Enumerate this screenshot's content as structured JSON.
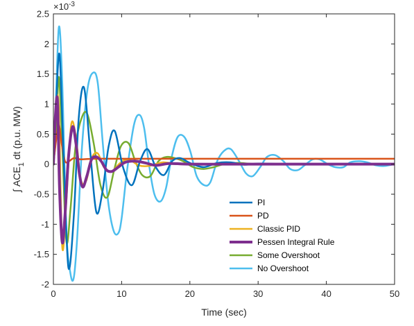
{
  "chart_data": {
    "type": "line",
    "xlabel": "Time (sec)",
    "ylabel": {
      "integral": "∫",
      "pre": "ACE",
      "sub": "1",
      "post": "dt (p.u. MW)"
    },
    "y_exponent": "×10",
    "y_exponent_power": "-3",
    "xlim": [
      0,
      50
    ],
    "ylim": [
      -2,
      2.5
    ],
    "xticks": [
      0,
      10,
      20,
      30,
      40,
      50
    ],
    "yticks": [
      -2,
      -1.5,
      -1,
      -0.5,
      0,
      0.5,
      1,
      1.5,
      2,
      2.5
    ],
    "grid": false,
    "legend_position": "bottom-center",
    "series": [
      {
        "name": "PI",
        "color": "#0072BD",
        "width": 2.5,
        "x": [
          0,
          0.4,
          0.9,
          1.5,
          2.2,
          3.0,
          3.7,
          4.5,
          5.4,
          6.3,
          7.2,
          8.1,
          9.0,
          10.2,
          11.5,
          12.7,
          13.8,
          15.0,
          16.2,
          17.4,
          18.6,
          20,
          22,
          24,
          26,
          28,
          30,
          35,
          40,
          45,
          50
        ],
        "y": [
          0,
          1.0,
          1.82,
          0.1,
          -1.72,
          -0.85,
          0.75,
          1.27,
          0.2,
          -0.8,
          -0.45,
          0.3,
          0.55,
          -0.05,
          -0.35,
          0.05,
          0.25,
          -0.05,
          -0.18,
          0.05,
          0.1,
          0.02,
          -0.05,
          0.02,
          0.03,
          -0.01,
          0.01,
          0,
          0,
          0,
          0
        ]
      },
      {
        "name": "PD",
        "color": "#D95319",
        "width": 2.5,
        "x": [
          0,
          0.4,
          0.8,
          1.2,
          1.7,
          2.3,
          3.0,
          4.0,
          6,
          10,
          20,
          30,
          40,
          50
        ],
        "y": [
          0,
          0.4,
          0.65,
          0.35,
          0.05,
          0.05,
          0.1,
          0.08,
          0.09,
          0.09,
          0.09,
          0.09,
          0.09,
          0.09
        ]
      },
      {
        "name": "Classic PID",
        "color": "#EDB120",
        "width": 2.5,
        "x": [
          0,
          0.4,
          0.8,
          1.3,
          1.9,
          2.6,
          3.3,
          4.0,
          4.8,
          5.6,
          6.5,
          7.4,
          8.5,
          9.8,
          11,
          12.5,
          14,
          16,
          18,
          20,
          25,
          30,
          40,
          50
        ],
        "y": [
          0,
          1.0,
          0.9,
          -1.38,
          -0.6,
          0.65,
          0.45,
          -0.25,
          -0.28,
          0.1,
          0.18,
          -0.05,
          -0.12,
          0.02,
          0.08,
          -0.02,
          -0.03,
          0.03,
          0,
          0,
          0,
          0,
          0,
          0
        ]
      },
      {
        "name": "Pessen Integral Rule",
        "color": "#7E2F8E",
        "width": 4,
        "x": [
          0,
          0.3,
          0.6,
          0.9,
          1.3,
          1.7,
          2.2,
          2.8,
          3.3,
          3.8,
          4.3,
          4.9,
          5.6,
          6.3,
          7.0,
          7.8,
          8.6,
          9.5,
          10.5,
          12,
          13.5,
          15,
          17,
          20,
          25,
          30,
          40,
          50
        ],
        "y": [
          0,
          0.8,
          1.05,
          -0.4,
          -1.3,
          -0.85,
          0.1,
          0.62,
          0.35,
          -0.15,
          -0.38,
          -0.2,
          0.08,
          0.12,
          0.05,
          -0.1,
          -0.12,
          -0.05,
          0.03,
          0.05,
          0.02,
          -0.02,
          0.01,
          0,
          0,
          0,
          0,
          0
        ]
      },
      {
        "name": "Some Overshoot",
        "color": "#77AC30",
        "width": 2.5,
        "x": [
          0,
          0.4,
          0.8,
          1.3,
          1.9,
          2.5,
          3.2,
          4.0,
          4.9,
          5.9,
          6.9,
          7.9,
          8.9,
          9.9,
          11,
          12,
          13,
          14.2,
          15.4,
          16.6,
          17.8,
          19,
          20.5,
          22,
          23.5,
          25,
          27,
          30,
          35,
          40,
          50
        ],
        "y": [
          0,
          0.5,
          1.45,
          0.3,
          -1.28,
          -0.75,
          0.25,
          0.72,
          0.85,
          0.35,
          -0.35,
          -0.55,
          -0.1,
          0.3,
          0.35,
          0.05,
          -0.18,
          -0.2,
          0.05,
          0.12,
          0.1,
          0.05,
          -0.05,
          -0.08,
          -0.05,
          0,
          0.02,
          0,
          0,
          0,
          0
        ]
      },
      {
        "name": "No Overshoot",
        "color": "#4DBEEE",
        "width": 2.5,
        "x": [
          0,
          0.3,
          0.8,
          1.3,
          1.9,
          2.5,
          3.0,
          3.5,
          4.2,
          5.0,
          5.8,
          6.5,
          7.2,
          8.0,
          8.8,
          9.5,
          10,
          10.8,
          11.8,
          12.6,
          13.3,
          14,
          14.8,
          15.7,
          16.5,
          17.3,
          18.2,
          19.2,
          20.1,
          21,
          22.1,
          23,
          24,
          25,
          26,
          27.2,
          28.2,
          29.2,
          30.3,
          31.3,
          32.5,
          33.7,
          34.7,
          35.8,
          36.8,
          38,
          39,
          40.2,
          41.3,
          42.5,
          43.5,
          44.8,
          46,
          47.3,
          48.5,
          50
        ],
        "y": [
          0,
          0.8,
          2.28,
          1.35,
          -1.1,
          -1.82,
          -1.88,
          -1.2,
          0.3,
          1.25,
          1.52,
          1.35,
          0.4,
          -0.6,
          -1.1,
          -1.15,
          -0.9,
          -0.1,
          0.65,
          0.82,
          0.6,
          0.0,
          -0.5,
          -0.62,
          -0.4,
          0.1,
          0.45,
          0.45,
          0.2,
          -0.2,
          -0.35,
          -0.3,
          0.05,
          0.22,
          0.25,
          0.05,
          -0.15,
          -0.2,
          -0.05,
          0.12,
          0.15,
          0.05,
          -0.08,
          -0.1,
          -0.02,
          0.08,
          0.08,
          0.0,
          -0.05,
          -0.05,
          0.03,
          0.05,
          0.03,
          -0.02,
          -0.03,
          0
        ]
      }
    ]
  }
}
